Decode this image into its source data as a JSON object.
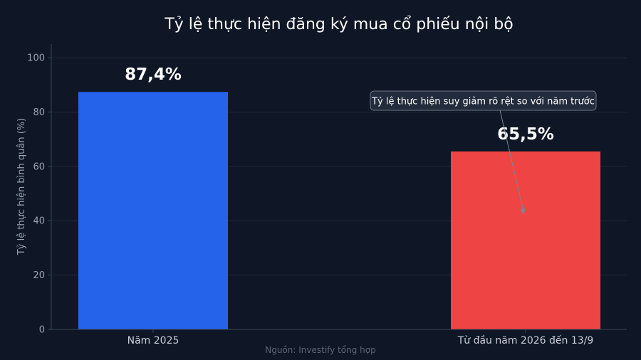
{
  "chart_data": {
    "type": "bar",
    "title": "Tỷ lệ thực hiện đăng ký mua cổ phiếu nội bộ",
    "xlabel": "",
    "ylabel": "Tỷ lệ thực hiện bình quân (%)",
    "categories": [
      "Năm 2025",
      "Từ đầu năm 2026 đến 13/9"
    ],
    "values": [
      87.4,
      65.5
    ],
    "data_labels": [
      "87,4%",
      "65,5%"
    ],
    "bar_colors": [
      "#2563eb",
      "#ef4444"
    ],
    "ylim": [
      0,
      105
    ],
    "yticks": [
      0,
      20,
      40,
      60,
      80,
      100
    ],
    "ytick_labels": [
      "0",
      "20",
      "40",
      "60",
      "80",
      "100"
    ],
    "grid": "horizontal",
    "annotation": {
      "text": "Tỷ lệ thực hiện suy giảm rõ rệt so với năm trước",
      "points_to_category": "Từ đầu năm 2026 đến 13/9",
      "points_to_value": 42
    },
    "source": "Nguồn: Investify tổng hợp"
  },
  "colors": {
    "background": "#0f1726",
    "grid": "#1e2838",
    "axis": "#3a4456",
    "title": "#ffffff",
    "tick": "#9aa3b2"
  }
}
